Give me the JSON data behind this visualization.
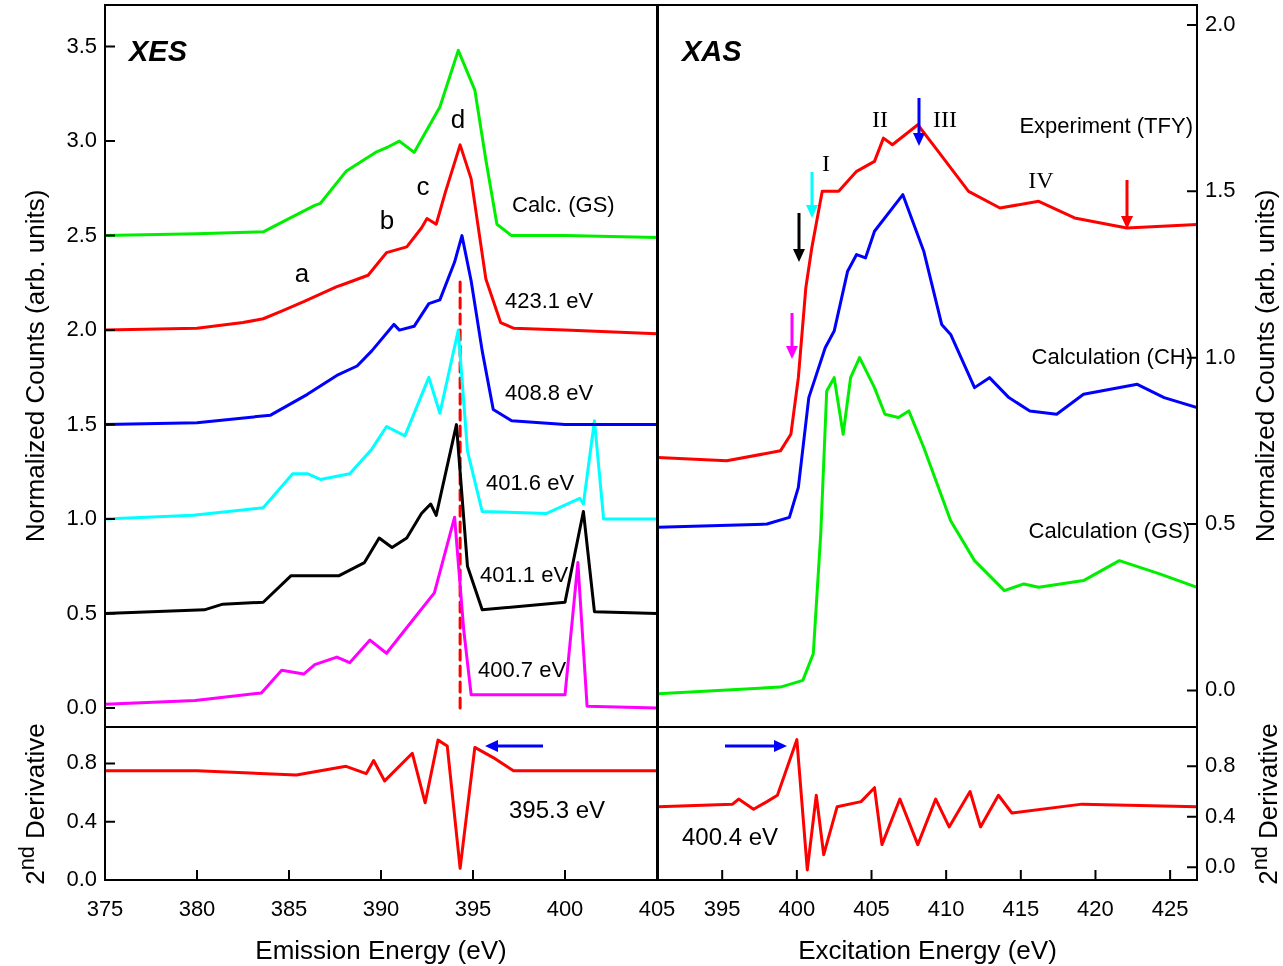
{
  "chart_data": [
    {
      "type": "line",
      "title": "XES",
      "ylabel": "Normalized Counts (arb. units)",
      "xlim": [
        375,
        405
      ],
      "xticks": [
        375,
        380,
        385,
        390,
        395,
        400,
        405
      ],
      "ylim": [
        -0.1,
        3.72
      ],
      "yticks": [
        {
          "value": 0,
          "label": "0.0"
        },
        0.5,
        {
          "value": 1,
          "label": "1.0"
        },
        1.5,
        {
          "value": 2,
          "label": "2.0"
        },
        2.5,
        {
          "value": 3,
          "label": "3.0"
        },
        3.5
      ],
      "tick_labels": "y",
      "marker": "none",
      "annotations": [
        "a",
        "b",
        "c",
        "d"
      ],
      "series": [
        {
          "name": "Calc. (GS)",
          "color": "#00ee00",
          "x": [
            375,
            380,
            383.6,
            384.6,
            386.4,
            386.7,
            388.1,
            389.7,
            390.4,
            391.0,
            391.8,
            393.2,
            394.2,
            395.1,
            395.7,
            396.3,
            397.1,
            400,
            405
          ],
          "values": [
            2.5,
            2.51,
            2.52,
            2.57,
            2.66,
            2.67,
            2.84,
            2.94,
            2.97,
            3.0,
            2.94,
            3.18,
            3.48,
            3.27,
            2.9,
            2.56,
            2.5,
            2.5,
            2.49
          ]
        },
        {
          "name": "423.1 eV",
          "color": "#ff0000",
          "x": [
            375,
            380,
            382.5,
            383.6,
            384.6,
            385.8,
            386.7,
            387.6,
            387.9,
            389.3,
            390.3,
            391.4,
            392.2,
            392.5,
            393.0,
            393.5,
            394.3,
            394.9,
            395.7,
            396.5,
            397.2,
            400,
            405
          ],
          "values": [
            2.0,
            2.01,
            2.04,
            2.06,
            2.1,
            2.15,
            2.19,
            2.23,
            2.24,
            2.29,
            2.41,
            2.44,
            2.54,
            2.59,
            2.56,
            2.73,
            2.98,
            2.8,
            2.27,
            2.04,
            2.01,
            2.0,
            1.98
          ]
        },
        {
          "name": "408.8 eV",
          "color": "#0000ff",
          "x": [
            375,
            380,
            384,
            386,
            387.6,
            388.7,
            389.5,
            390.7,
            391.0,
            391.8,
            392.6,
            393.2,
            394.0,
            394.4,
            394.9,
            395.5,
            396.1,
            397.1,
            400,
            405
          ],
          "values": [
            1.5,
            1.51,
            1.55,
            1.66,
            1.76,
            1.81,
            1.89,
            2.03,
            2.0,
            2.02,
            2.14,
            2.16,
            2.36,
            2.5,
            2.26,
            1.89,
            1.58,
            1.52,
            1.5,
            1.5
          ]
        },
        {
          "name": "401.6 eV",
          "color": "#00ffff",
          "x": [
            375,
            379.8,
            383.6,
            385.2,
            386.0,
            386.7,
            388.3,
            389.5,
            390.3,
            391.3,
            392.6,
            393.2,
            394.2,
            394.7,
            395.5,
            399.0,
            400.8,
            401.0,
            401.6,
            402.1,
            405
          ],
          "values": [
            1.0,
            1.02,
            1.06,
            1.24,
            1.24,
            1.21,
            1.24,
            1.37,
            1.49,
            1.44,
            1.75,
            1.56,
            2.0,
            1.36,
            1.04,
            1.03,
            1.11,
            1.08,
            1.52,
            1.0,
            1.0
          ]
        },
        {
          "name": "401.1 eV",
          "color": "#000000",
          "x": [
            375,
            380.4,
            381.4,
            383.6,
            385.1,
            386.4,
            387.7,
            389.1,
            389.9,
            390.6,
            391.4,
            392.2,
            392.7,
            393.0,
            394.1,
            394.7,
            395.5,
            400.0,
            401.0,
            401.6,
            405
          ],
          "values": [
            0.5,
            0.52,
            0.55,
            0.56,
            0.7,
            0.7,
            0.7,
            0.77,
            0.9,
            0.85,
            0.9,
            1.03,
            1.08,
            1.02,
            1.5,
            0.75,
            0.52,
            0.56,
            1.04,
            0.51,
            0.5
          ]
        },
        {
          "name": "400.7 eV",
          "color": "#ff00ff",
          "x": [
            375,
            379.9,
            383.5,
            384.6,
            385.8,
            386.4,
            387.6,
            388.3,
            389.4,
            390.3,
            391.6,
            392.9,
            394.0,
            394.5,
            394.9,
            400.0,
            400.7,
            401.2,
            405
          ],
          "values": [
            0.02,
            0.04,
            0.08,
            0.2,
            0.18,
            0.23,
            0.27,
            0.24,
            0.36,
            0.29,
            0.45,
            0.61,
            1.01,
            0.41,
            0.07,
            0.07,
            0.77,
            0.01,
            0.0
          ]
        },
        {
          "color": "#ff0000",
          "line_style": "dashed",
          "x": [
            394.3,
            394.3
          ],
          "values": [
            0,
            2.27
          ]
        }
      ]
    },
    {
      "type": "line",
      "title": "XAS",
      "ylabel": "Normalized Counts (arb. units)",
      "xlim": [
        390.7,
        426.8
      ],
      "xticks": [
        395,
        400,
        405,
        410,
        415,
        420,
        425
      ],
      "ylim": [
        -0.11,
        2.06
      ],
      "yticks": [
        {
          "value": 0,
          "label": "0.0"
        },
        0.5,
        {
          "value": 1,
          "label": "1.0"
        },
        1.5,
        {
          "value": 2,
          "label": "2.0"
        }
      ],
      "tick_labels": "y",
      "marker": "none",
      "annotations": [
        "I",
        "II",
        "III",
        "IV"
      ],
      "series": [
        {
          "name": "Experiment (TFY)",
          "color": "#ff0000",
          "x": [
            390.7,
            395.3,
            398.9,
            399.6,
            400.1,
            400.6,
            401.0,
            401.7,
            402.8,
            404.0,
            405.2,
            405.8,
            406.4,
            408.1,
            409.3,
            411.5,
            413.6,
            416.2,
            418.6,
            422.1,
            426.8
          ],
          "values": [
            0.7,
            0.69,
            0.72,
            0.77,
            0.94,
            1.21,
            1.33,
            1.5,
            1.5,
            1.56,
            1.59,
            1.66,
            1.64,
            1.7,
            1.63,
            1.5,
            1.45,
            1.47,
            1.42,
            1.39,
            1.4
          ]
        },
        {
          "name": "Calculation (CH)",
          "color": "#0000ff",
          "x": [
            390.7,
            398.0,
            399.5,
            400.1,
            400.8,
            401.9,
            402.5,
            403.4,
            404.0,
            404.6,
            405.2,
            407.1,
            408.5,
            409.7,
            410.3,
            411.9,
            412.9,
            414.2,
            415.6,
            417.4,
            419.2,
            422.8,
            424.6,
            426.8
          ],
          "values": [
            0.49,
            0.5,
            0.52,
            0.61,
            0.88,
            1.03,
            1.08,
            1.26,
            1.31,
            1.3,
            1.38,
            1.49,
            1.32,
            1.1,
            1.07,
            0.91,
            0.94,
            0.88,
            0.84,
            0.83,
            0.89,
            0.92,
            0.88,
            0.85
          ]
        },
        {
          "name": "Calculation (GS)",
          "color": "#00ee00",
          "x": [
            390.7,
            398.9,
            400.4,
            401.1,
            401.6,
            402.0,
            402.5,
            403.1,
            403.6,
            404.2,
            405.2,
            405.9,
            406.8,
            407.5,
            408.5,
            410.3,
            411.9,
            413.9,
            415.2,
            416.2,
            419.2,
            421.6,
            424.3,
            426.8
          ],
          "values": [
            -0.01,
            0.01,
            0.03,
            0.11,
            0.47,
            0.9,
            0.94,
            0.77,
            0.94,
            1.0,
            0.91,
            0.83,
            0.82,
            0.84,
            0.73,
            0.51,
            0.39,
            0.3,
            0.32,
            0.31,
            0.33,
            0.39,
            0.35,
            0.31
          ]
        }
      ]
    },
    {
      "type": "line",
      "xlabel": "Emission Energy (eV)",
      "ylabel": "2$^{nd}$ Derivative",
      "xlim": [
        375,
        405
      ],
      "xticks": [
        375,
        380,
        385,
        390,
        395,
        400,
        405
      ],
      "ylim": [
        0,
        1.05
      ],
      "yticks": [
        {
          "value": 0,
          "label": "0.0"
        },
        0.4,
        0.8
      ],
      "marker": "none",
      "annotations": [
        "395.3 eV"
      ],
      "series": [
        {
          "color": "#ff0000",
          "x": [
            375,
            380,
            385.4,
            388.1,
            389.2,
            389.6,
            390.2,
            391.7,
            392.4,
            393.1,
            393.6,
            394.3,
            395.1,
            396.1,
            397.2,
            400,
            405
          ],
          "values": [
            0.75,
            0.75,
            0.72,
            0.78,
            0.73,
            0.82,
            0.68,
            0.87,
            0.53,
            0.96,
            0.92,
            0.08,
            0.91,
            0.84,
            0.75,
            0.75,
            0.75
          ]
        }
      ]
    },
    {
      "type": "line",
      "xlabel": "Excitation Energy (eV)",
      "ylabel": "2$^{nd}$ Derivative",
      "xlim": [
        390.7,
        426.8
      ],
      "xticks": [
        395,
        400,
        405,
        410,
        415,
        420,
        425
      ],
      "ylim": [
        -0.1,
        1.11
      ],
      "yticks": [
        {
          "value": 0,
          "label": "0.0"
        },
        0.4,
        0.8
      ],
      "marker": "none",
      "annotations": [
        "400.4 eV"
      ],
      "series": [
        {
          "color": "#ff0000",
          "x": [
            390.7,
            395.7,
            396.1,
            397.1,
            398.0,
            398.7,
            400.0,
            400.7,
            401.3,
            401.8,
            402.7,
            404.3,
            405.2,
            405.7,
            406.9,
            408.1,
            409.3,
            410.2,
            411.6,
            412.3,
            413.5,
            414.4,
            419.1,
            426.8
          ],
          "values": [
            0.48,
            0.5,
            0.54,
            0.46,
            0.52,
            0.57,
            1.01,
            -0.02,
            0.57,
            0.1,
            0.48,
            0.52,
            0.63,
            0.18,
            0.54,
            0.18,
            0.54,
            0.32,
            0.6,
            0.32,
            0.57,
            0.43,
            0.5,
            0.48
          ]
        }
      ]
    }
  ]
}
